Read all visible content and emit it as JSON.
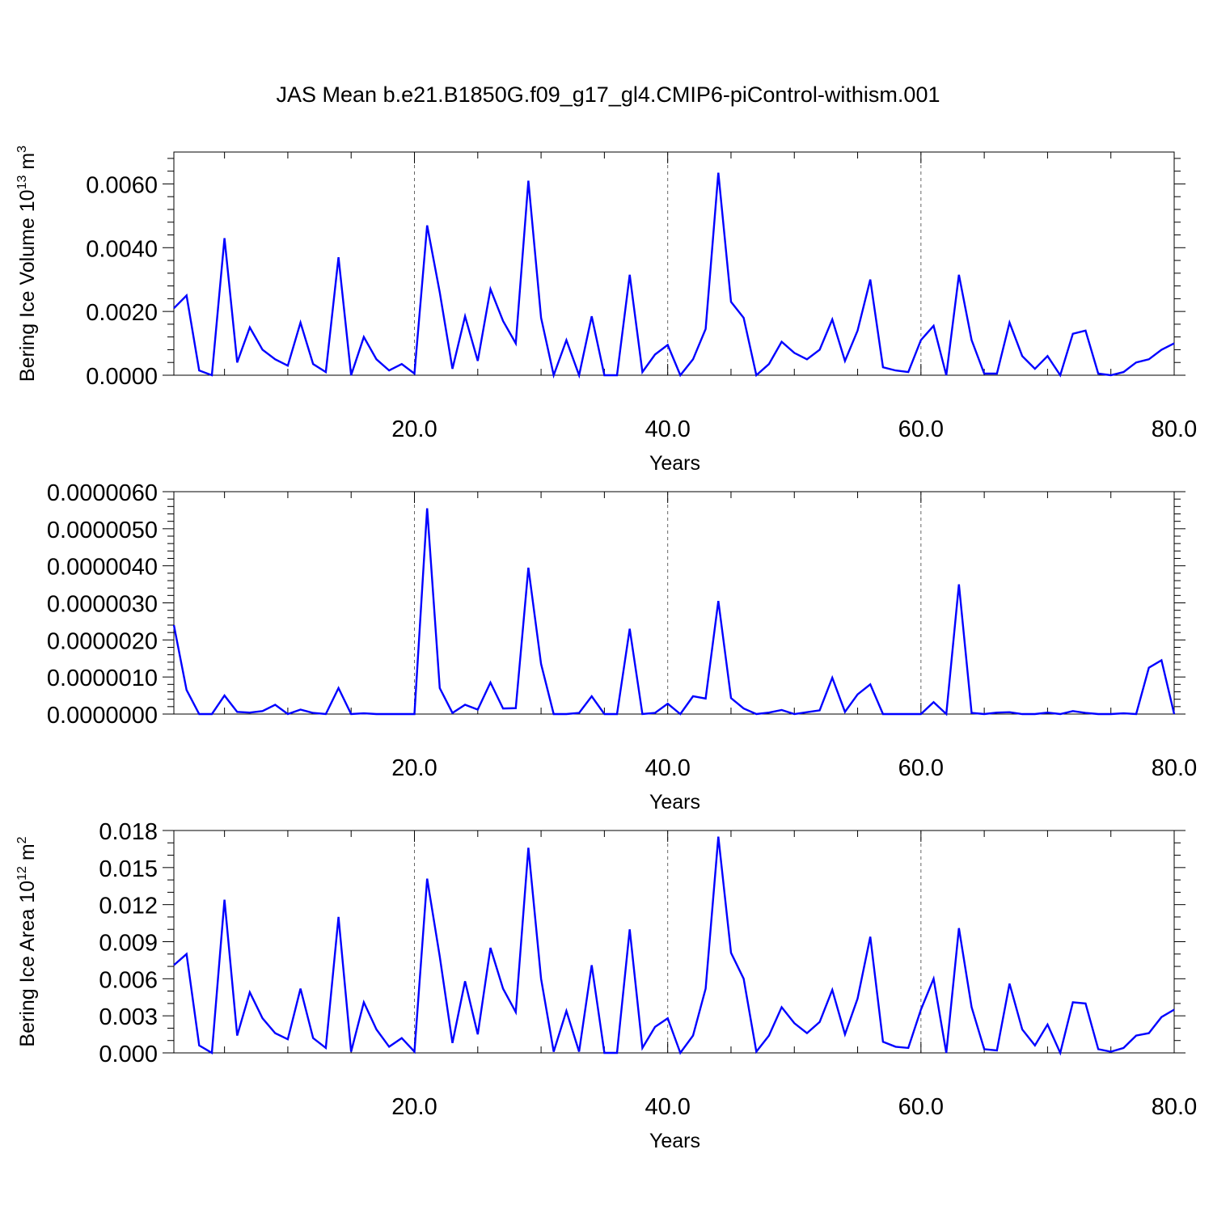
{
  "title": "JAS Mean b.e21.B1850G.f09_g17_gl4.CMIP6-piControl-withism.001",
  "colors": {
    "series": "#0000ff",
    "axis": "#000000",
    "grid": "#666666",
    "background": "#ffffff"
  },
  "chart_data": [
    {
      "type": "line",
      "xlabel": "Years",
      "ylabel": "Bering Ice Volume 10",
      "ylabel_sup": "13",
      "ylabel_unit": " m",
      "ylabel_unit_sup": "3",
      "xlim": [
        1,
        80
      ],
      "ylim": [
        0,
        0.007
      ],
      "x_ticks": [
        "20.0",
        "40.0",
        "60.0",
        "80.0"
      ],
      "y_ticks": [
        "0.0000",
        "0.0020",
        "0.0040",
        "0.0060"
      ],
      "grid": "vertical dashed at 20, 40, 60",
      "x": [
        1,
        2,
        3,
        4,
        5,
        6,
        7,
        8,
        9,
        10,
        11,
        12,
        13,
        14,
        15,
        16,
        17,
        18,
        19,
        20,
        21,
        22,
        23,
        24,
        25,
        26,
        27,
        28,
        29,
        30,
        31,
        32,
        33,
        34,
        35,
        36,
        37,
        38,
        39,
        40,
        41,
        42,
        43,
        44,
        45,
        46,
        47,
        48,
        49,
        50,
        51,
        52,
        53,
        54,
        55,
        56,
        57,
        58,
        59,
        60,
        61,
        62,
        63,
        64,
        65,
        66,
        67,
        68,
        69,
        70,
        71,
        72,
        73,
        74,
        75,
        76,
        77,
        78,
        79,
        80
      ],
      "series": [
        {
          "values": [
            0.0021,
            0.0025,
            0.00015,
            0.0,
            0.0043,
            0.0004,
            0.0015,
            0.0008,
            0.0005,
            0.0003,
            0.00165,
            0.00035,
            0.0001,
            0.0037,
            0.0,
            0.0012,
            0.0005,
            0.00015,
            0.00035,
            5e-05,
            0.0047,
            0.0026,
            0.0002,
            0.00185,
            0.00045,
            0.0027,
            0.0017,
            0.001,
            0.0061,
            0.0018,
            0.0,
            0.0011,
            0.0,
            0.00185,
            0.0,
            0.0,
            0.00315,
            0.0001,
            0.00065,
            0.00095,
            0.0,
            0.0005,
            0.00145,
            0.00635,
            0.0023,
            0.0018,
            0.0,
            0.00035,
            0.00105,
            0.0007,
            0.0005,
            0.0008,
            0.00175,
            0.00045,
            0.0014,
            0.003,
            0.00025,
            0.00015,
            0.0001,
            0.0011,
            0.00155,
            0.0,
            0.00315,
            0.0011,
            5e-05,
            5e-05,
            0.00165,
            0.0006,
            0.0002,
            0.0006,
            0.0,
            0.0013,
            0.0014,
            5e-05,
            0.0,
            0.0001,
            0.0004,
            0.0005,
            0.0008,
            0.001
          ]
        }
      ]
    },
    {
      "type": "line",
      "xlabel": "Years",
      "ylabel": "",
      "xlim": [
        1,
        80
      ],
      "ylim": [
        0,
        6e-06
      ],
      "x_ticks": [
        "20.0",
        "40.0",
        "60.0",
        "80.0"
      ],
      "y_ticks": [
        "0.0000000",
        "0.0000010",
        "0.0000020",
        "0.0000030",
        "0.0000040",
        "0.0000050",
        "0.0000060"
      ],
      "grid": "vertical dashed at 20, 40, 60",
      "x": [
        1,
        2,
        3,
        4,
        5,
        6,
        7,
        8,
        9,
        10,
        11,
        12,
        13,
        14,
        15,
        16,
        17,
        18,
        19,
        20,
        21,
        22,
        23,
        24,
        25,
        26,
        27,
        28,
        29,
        30,
        31,
        32,
        33,
        34,
        35,
        36,
        37,
        38,
        39,
        40,
        41,
        42,
        43,
        44,
        45,
        46,
        47,
        48,
        49,
        50,
        51,
        52,
        53,
        54,
        55,
        56,
        57,
        58,
        59,
        60,
        61,
        62,
        63,
        64,
        65,
        66,
        67,
        68,
        69,
        70,
        71,
        72,
        73,
        74,
        75,
        76,
        77,
        78,
        79,
        80
      ],
      "series": [
        {
          "values": [
            2.4e-06,
            6.5e-07,
            0,
            0,
            5e-07,
            6e-08,
            4e-08,
            8e-08,
            2.5e-07,
            0,
            1.2e-07,
            3e-08,
            0,
            7e-07,
            0,
            2e-08,
            0,
            0,
            0,
            0,
            5.55e-06,
            7e-07,
            3e-08,
            2.5e-07,
            1.2e-07,
            8.5e-07,
            1.5e-07,
            1.6e-07,
            3.95e-06,
            1.35e-06,
            0,
            0,
            3e-08,
            4.8e-07,
            0,
            0,
            2.3e-06,
            0,
            3e-08,
            2.8e-07,
            0,
            4.8e-07,
            4.2e-07,
            3.05e-06,
            4.3e-07,
            1.5e-07,
            0,
            4e-08,
            1.1e-07,
            0,
            5e-08,
            1e-07,
            9.8e-07,
            6e-08,
            5.3e-07,
            8e-07,
            0,
            0,
            0,
            0,
            3.2e-07,
            0,
            3.5e-06,
            3e-08,
            0,
            4e-08,
            5e-08,
            0,
            0,
            4e-08,
            0,
            8e-08,
            3e-08,
            0,
            0,
            2e-08,
            0,
            1.25e-06,
            1.45e-06,
            0
          ]
        }
      ]
    },
    {
      "type": "line",
      "xlabel": "Years",
      "ylabel": "Bering Ice Area 10",
      "ylabel_sup": "12",
      "ylabel_unit": " m",
      "ylabel_unit_sup": "2",
      "xlim": [
        1,
        80
      ],
      "ylim": [
        0,
        0.018
      ],
      "x_ticks": [
        "20.0",
        "40.0",
        "60.0",
        "80.0"
      ],
      "y_ticks": [
        "0.000",
        "0.003",
        "0.006",
        "0.009",
        "0.012",
        "0.015",
        "0.018"
      ],
      "grid": "vertical dashed at 20, 40, 60",
      "x": [
        1,
        2,
        3,
        4,
        5,
        6,
        7,
        8,
        9,
        10,
        11,
        12,
        13,
        14,
        15,
        16,
        17,
        18,
        19,
        20,
        21,
        22,
        23,
        24,
        25,
        26,
        27,
        28,
        29,
        30,
        31,
        32,
        33,
        34,
        35,
        36,
        37,
        38,
        39,
        40,
        41,
        42,
        43,
        44,
        45,
        46,
        47,
        48,
        49,
        50,
        51,
        52,
        53,
        54,
        55,
        56,
        57,
        58,
        59,
        60,
        61,
        62,
        63,
        64,
        65,
        66,
        67,
        68,
        69,
        70,
        71,
        72,
        73,
        74,
        75,
        76,
        77,
        78,
        79,
        80
      ],
      "series": [
        {
          "values": [
            0.0071,
            0.008,
            0.0006,
            0.0,
            0.0124,
            0.0014,
            0.0049,
            0.0028,
            0.0016,
            0.0011,
            0.0052,
            0.0012,
            0.0004,
            0.011,
            0.0001,
            0.0041,
            0.0019,
            0.0005,
            0.0012,
            0.0001,
            0.0141,
            0.0078,
            0.0008,
            0.0058,
            0.0015,
            0.0085,
            0.0052,
            0.0033,
            0.0166,
            0.006,
            0.0001,
            0.0034,
            0.0001,
            0.0071,
            0.0,
            0.0,
            0.01,
            0.0004,
            0.0021,
            0.0028,
            0.0,
            0.0014,
            0.0052,
            0.0175,
            0.0081,
            0.006,
            0.0001,
            0.0014,
            0.0037,
            0.0024,
            0.0016,
            0.0025,
            0.0051,
            0.0015,
            0.0044,
            0.0094,
            0.0009,
            0.0005,
            0.0004,
            0.0035,
            0.006,
            0.0,
            0.0101,
            0.0037,
            0.0003,
            0.0002,
            0.0056,
            0.0019,
            0.0006,
            0.0023,
            0.0,
            0.0041,
            0.004,
            0.0003,
            0.0001,
            0.0004,
            0.0014,
            0.0016,
            0.0029,
            0.0035
          ]
        }
      ]
    }
  ]
}
